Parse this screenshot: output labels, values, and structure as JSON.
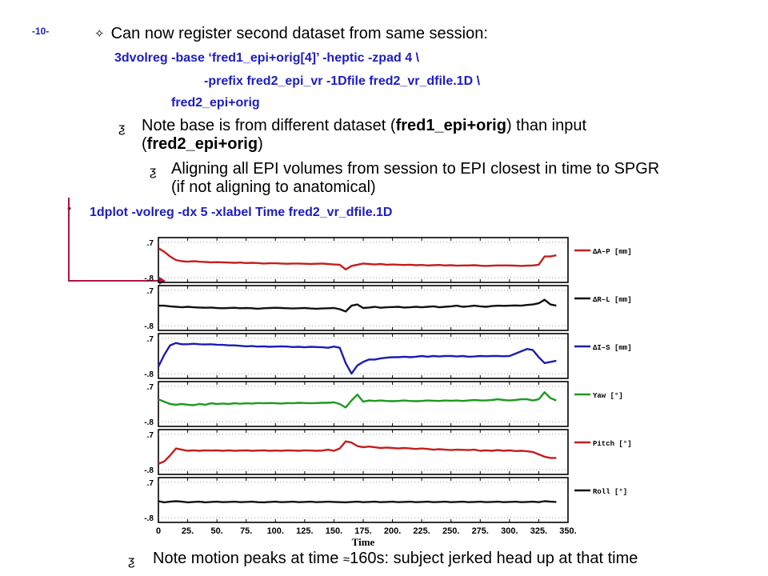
{
  "page": {
    "number": "-10-"
  },
  "bullets": {
    "b1": {
      "symbol": "✧",
      "text": "Can now register second dataset from same session:"
    },
    "code1": "3dvolreg -base ‘fred1_epi+orig[4]’ -heptic -zpad 4   \\",
    "code2": "-prefix fred2_epi_vr -1Dfile fred2_vr_dfile.1D \\",
    "code3": "fred2_epi+orig",
    "b2": {
      "symbol": "ƺ",
      "pre": "Note base is from different dataset (",
      "bold1": "fred1_epi+orig",
      "mid": ") than input",
      "line2_open": "(",
      "bold2": "fred2_epi+orig",
      "line2_close": ")"
    },
    "b3": {
      "symbol": "ƺ",
      "line1": "Aligning all EPI volumes from session to EPI closest in time to SPGR",
      "line2": "(if not aligning to anatomical)"
    },
    "b4": {
      "symbol": "•",
      "code": "1dplot -volreg -dx 5 -xlabel Time fred2_vr_dfile.1D"
    },
    "b5": {
      "symbol": "ƺ",
      "text_pre": "Note motion peaks at time",
      "approx": "≈",
      "text_post": "160s: subject jerked head up at that time"
    }
  },
  "chart_data": {
    "type": "line",
    "xlabel": "Time",
    "xticks": [
      "0",
      "25.",
      "50.",
      "75.",
      "100.",
      "125.",
      "150.",
      "175.",
      "200.",
      "225.",
      "250.",
      "275.",
      "300.",
      "325.",
      "350."
    ],
    "xlim": [
      0,
      350
    ],
    "panel_ylabels": {
      "top": ".7",
      "bottom": "-.8"
    },
    "x": [
      0,
      5,
      10,
      15,
      20,
      25,
      30,
      35,
      40,
      45,
      50,
      55,
      60,
      65,
      70,
      75,
      80,
      85,
      90,
      95,
      100,
      105,
      110,
      115,
      120,
      125,
      130,
      135,
      140,
      145,
      150,
      155,
      160,
      165,
      170,
      175,
      180,
      185,
      190,
      195,
      200,
      205,
      210,
      215,
      220,
      225,
      230,
      235,
      240,
      245,
      250,
      255,
      260,
      265,
      270,
      275,
      280,
      285,
      290,
      295,
      300,
      305,
      310,
      315,
      320,
      325,
      330,
      335,
      340
    ],
    "series": [
      {
        "name": "ΔA–P [mm]",
        "color": "#c41e1e",
        "values": [
          0.45,
          0.3,
          0.1,
          -0.05,
          -0.1,
          -0.12,
          -0.1,
          -0.12,
          -0.13,
          -0.15,
          -0.14,
          -0.15,
          -0.16,
          -0.17,
          -0.16,
          -0.18,
          -0.17,
          -0.18,
          -0.2,
          -0.19,
          -0.19,
          -0.2,
          -0.21,
          -0.2,
          -0.2,
          -0.21,
          -0.22,
          -0.21,
          -0.2,
          -0.22,
          -0.24,
          -0.25,
          -0.45,
          -0.3,
          -0.25,
          -0.2,
          -0.22,
          -0.24,
          -0.22,
          -0.25,
          -0.24,
          -0.25,
          -0.26,
          -0.25,
          -0.27,
          -0.26,
          -0.28,
          -0.27,
          -0.26,
          -0.28,
          -0.27,
          -0.29,
          -0.28,
          -0.28,
          -0.27,
          -0.29,
          -0.3,
          -0.29,
          -0.28,
          -0.28,
          -0.28,
          -0.29,
          -0.3,
          -0.29,
          -0.28,
          -0.25,
          0.1,
          0.1,
          0.15
        ]
      },
      {
        "name": "ΔR–L [mm]",
        "color": "#111111",
        "values": [
          0.05,
          0.05,
          0.02,
          0.0,
          -0.02,
          0.0,
          -0.02,
          -0.03,
          -0.04,
          -0.03,
          -0.05,
          -0.06,
          -0.05,
          -0.04,
          -0.06,
          -0.05,
          -0.06,
          -0.08,
          -0.06,
          -0.05,
          -0.04,
          -0.05,
          -0.06,
          -0.07,
          -0.06,
          -0.05,
          -0.07,
          -0.08,
          -0.07,
          -0.06,
          -0.05,
          -0.1,
          -0.2,
          0.05,
          0.1,
          -0.05,
          -0.03,
          0.0,
          -0.04,
          -0.02,
          -0.01,
          0.0,
          -0.03,
          -0.02,
          0.0,
          -0.02,
          0.0,
          0.02,
          -0.02,
          0.0,
          0.02,
          0.05,
          0.0,
          0.02,
          0.05,
          0.02,
          0.0,
          0.03,
          0.05,
          0.04,
          0.05,
          0.06,
          0.05,
          0.08,
          0.1,
          0.15,
          0.3,
          0.1,
          0.05
        ]
      },
      {
        "name": "ΔI–S [mm]",
        "color": "#1c1cb4",
        "values": [
          -0.5,
          0.0,
          0.4,
          0.5,
          0.45,
          0.45,
          0.47,
          0.45,
          0.44,
          0.45,
          0.43,
          0.42,
          0.4,
          0.4,
          0.38,
          0.36,
          0.37,
          0.35,
          0.36,
          0.34,
          0.35,
          0.36,
          0.35,
          0.33,
          0.34,
          0.32,
          0.34,
          0.33,
          0.32,
          0.3,
          0.35,
          0.3,
          -0.35,
          -0.8,
          -0.45,
          -0.3,
          -0.2,
          -0.2,
          -0.15,
          -0.12,
          -0.1,
          -0.1,
          -0.08,
          -0.1,
          -0.08,
          -0.05,
          -0.08,
          -0.05,
          -0.07,
          -0.05,
          -0.05,
          -0.07,
          -0.05,
          -0.08,
          -0.07,
          -0.05,
          -0.06,
          -0.05,
          -0.05,
          -0.06,
          -0.05,
          0.05,
          0.15,
          0.25,
          0.2,
          -0.1,
          -0.35,
          -0.3,
          -0.25
        ]
      },
      {
        "name": "Yaw [°]",
        "color": "#1e9a1e",
        "values": [
          0.15,
          0.05,
          -0.05,
          -0.08,
          -0.05,
          -0.08,
          -0.1,
          -0.05,
          -0.08,
          -0.02,
          -0.05,
          -0.03,
          -0.05,
          -0.02,
          -0.04,
          -0.02,
          -0.03,
          -0.01,
          -0.02,
          -0.01,
          -0.02,
          -0.03,
          -0.01,
          -0.02,
          0.0,
          -0.01,
          -0.02,
          -0.01,
          0.0,
          0.0,
          0.02,
          -0.05,
          -0.2,
          0.1,
          0.35,
          0.05,
          0.1,
          0.08,
          0.1,
          0.08,
          0.07,
          0.08,
          0.1,
          0.08,
          0.07,
          0.08,
          0.1,
          0.09,
          0.08,
          0.1,
          0.09,
          0.1,
          0.08,
          0.1,
          0.12,
          0.1,
          0.1,
          0.12,
          0.15,
          0.12,
          0.1,
          0.12,
          0.15,
          0.15,
          0.1,
          0.15,
          0.45,
          0.2,
          0.1
        ]
      },
      {
        "name": "Pitch [°]",
        "color": "#c41e1e",
        "values": [
          -0.55,
          -0.45,
          -0.2,
          0.1,
          0.05,
          0.0,
          0.02,
          0.0,
          0.02,
          0.01,
          0.02,
          0.0,
          0.02,
          0.0,
          0.01,
          0.02,
          0.0,
          0.01,
          0.02,
          0.0,
          0.01,
          0.0,
          0.02,
          0.01,
          0.0,
          0.02,
          0.01,
          0.0,
          0.01,
          0.05,
          0.0,
          0.1,
          0.4,
          0.35,
          0.2,
          0.15,
          0.18,
          0.15,
          0.12,
          0.14,
          0.12,
          0.1,
          0.12,
          0.1,
          0.08,
          0.1,
          0.08,
          0.05,
          0.07,
          0.05,
          0.03,
          0.05,
          0.04,
          0.03,
          0.05,
          0.0,
          0.02,
          0.0,
          0.03,
          0.0,
          0.02,
          -0.01,
          0.0,
          -0.02,
          -0.05,
          -0.15,
          -0.25,
          -0.3,
          -0.3
        ]
      },
      {
        "name": "Roll [°]",
        "color": "#111111",
        "values": [
          -0.1,
          -0.15,
          -0.12,
          -0.1,
          -0.12,
          -0.15,
          -0.13,
          -0.12,
          -0.15,
          -0.13,
          -0.12,
          -0.14,
          -0.13,
          -0.12,
          -0.14,
          -0.13,
          -0.12,
          -0.14,
          -0.15,
          -0.13,
          -0.12,
          -0.14,
          -0.13,
          -0.12,
          -0.14,
          -0.13,
          -0.12,
          -0.14,
          -0.13,
          -0.12,
          -0.13,
          -0.14,
          -0.15,
          -0.13,
          -0.12,
          -0.14,
          -0.13,
          -0.12,
          -0.14,
          -0.13,
          -0.12,
          -0.14,
          -0.13,
          -0.12,
          -0.14,
          -0.13,
          -0.12,
          -0.14,
          -0.13,
          -0.12,
          -0.14,
          -0.13,
          -0.12,
          -0.14,
          -0.13,
          -0.12,
          -0.14,
          -0.13,
          -0.12,
          -0.14,
          -0.13,
          -0.12,
          -0.14,
          -0.13,
          -0.12,
          -0.14,
          -0.1,
          -0.12,
          -0.13
        ]
      }
    ],
    "ylim": [
      -1.0,
      0.9
    ],
    "grid": true,
    "legend_position": "right"
  },
  "colors": {
    "code": "#1c1cc8",
    "connector": "#b0124a"
  }
}
